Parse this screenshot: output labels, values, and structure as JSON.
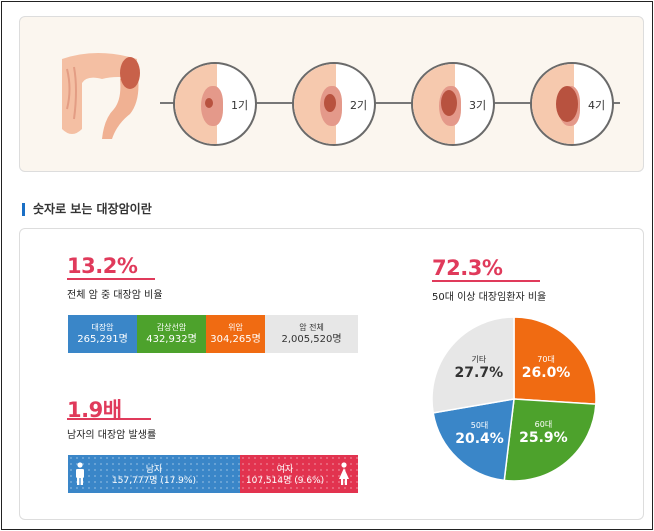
{
  "stages": [
    {
      "label": "1기"
    },
    {
      "label": "2기"
    },
    {
      "label": "3기"
    },
    {
      "label": "4기"
    }
  ],
  "section_title": "숫자로 보는 대장암이란",
  "stat1": {
    "value": "13.2%",
    "caption": "전체 암 중 대장암 비율",
    "bar": [
      {
        "label": "대장암",
        "value": "265,291명",
        "color": "#3a86c8"
      },
      {
        "label": "갑상선암",
        "value": "432,932명",
        "color": "#4da22c"
      },
      {
        "label": "위암",
        "value": "304,265명",
        "color": "#f06b12"
      },
      {
        "label": "암 전체",
        "value": "2,005,520명",
        "color": "#e7e7e7"
      }
    ]
  },
  "stat2": {
    "value": "1.9배",
    "caption": "남자의 대장암 발생률",
    "male": {
      "label": "남자",
      "value": "157,777명 (17.9%)",
      "color": "#3a86c8"
    },
    "female": {
      "label": "여자",
      "value": "107,514명 (9.6%)",
      "color": "#e2334f"
    }
  },
  "stat3": {
    "value": "72.3%",
    "caption": "50대 이상 대장임환자 비율"
  },
  "chart_data": {
    "type": "pie",
    "series": [
      {
        "name": "70대",
        "label": "26.0%",
        "value": 26.0,
        "color": "#f06b12"
      },
      {
        "name": "60대",
        "label": "25.9%",
        "value": 25.9,
        "color": "#4da22c"
      },
      {
        "name": "50대",
        "label": "20.4%",
        "value": 20.4,
        "color": "#3a86c8"
      },
      {
        "name": "기타",
        "label": "27.7%",
        "value": 27.7,
        "color": "#e7e7e7"
      }
    ]
  }
}
